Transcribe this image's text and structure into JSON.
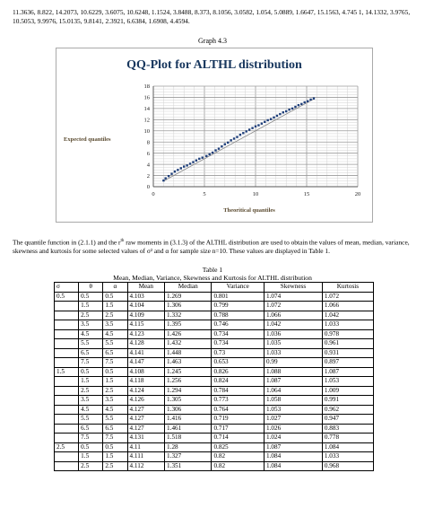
{
  "top_text": "11.3636, 8.822, 14.2073, 10.6229, 3.6075, 10.6248, 1.1524, 3.8488, 8.373, 8.1056, 3.0582, 1.054, 5.0889, 1.6647, 15.1563, 4.745 1, 14.1332, 3.9765, 10.5053, 9.9976, 15.0135, 9.8141, 2.3921, 6.6384, 1.6908, 4.4594.",
  "graph_label": "Graph 4.3",
  "chart_data": {
    "type": "scatter",
    "title": "QQ-Plot for ALTHL distribution",
    "xlabel": "Theoritical quantiles",
    "ylabel": "Expected quantiles",
    "xlim": [
      0,
      20
    ],
    "ylim": [
      0,
      18
    ],
    "x_ticks": [
      "0",
      "5",
      "10",
      "15",
      "20"
    ],
    "y_ticks": [
      "0",
      "2",
      "4",
      "6",
      "8",
      "10",
      "12",
      "14",
      "16",
      "18"
    ],
    "grid": true,
    "colors": {
      "title": "#17365d",
      "axis_label": "#5a4a2f",
      "points": "#1f3f7a",
      "trend": "#888888"
    },
    "points": [
      [
        1.0,
        1.1
      ],
      [
        1.2,
        1.5
      ],
      [
        1.5,
        1.9
      ],
      [
        1.8,
        2.3
      ],
      [
        2.1,
        2.7
      ],
      [
        2.4,
        3.0
      ],
      [
        2.7,
        3.3
      ],
      [
        3.0,
        3.6
      ],
      [
        3.3,
        3.8
      ],
      [
        3.6,
        4.1
      ],
      [
        3.9,
        4.4
      ],
      [
        4.2,
        4.7
      ],
      [
        4.5,
        5.0
      ],
      [
        4.8,
        5.2
      ],
      [
        5.2,
        5.5
      ],
      [
        5.5,
        5.8
      ],
      [
        5.8,
        6.1
      ],
      [
        6.1,
        6.5
      ],
      [
        6.4,
        6.8
      ],
      [
        6.7,
        7.2
      ],
      [
        7.0,
        7.6
      ],
      [
        7.3,
        7.9
      ],
      [
        7.6,
        8.3
      ],
      [
        7.9,
        8.6
      ],
      [
        8.2,
        8.9
      ],
      [
        8.5,
        9.3
      ],
      [
        8.8,
        9.6
      ],
      [
        9.1,
        9.9
      ],
      [
        9.4,
        10.2
      ],
      [
        9.7,
        10.5
      ],
      [
        10.0,
        10.8
      ],
      [
        10.3,
        11.0
      ],
      [
        10.6,
        11.3
      ],
      [
        10.9,
        11.6
      ],
      [
        11.2,
        11.9
      ],
      [
        11.5,
        12.1
      ],
      [
        11.8,
        12.4
      ],
      [
        12.1,
        12.7
      ],
      [
        12.4,
        13.0
      ],
      [
        12.7,
        13.3
      ],
      [
        13.0,
        13.5
      ],
      [
        13.3,
        13.8
      ],
      [
        13.6,
        14.0
      ],
      [
        13.9,
        14.3
      ],
      [
        14.2,
        14.6
      ],
      [
        14.5,
        14.8
      ],
      [
        14.8,
        15.1
      ],
      [
        15.1,
        15.3
      ],
      [
        15.4,
        15.6
      ],
      [
        15.7,
        15.8
      ]
    ],
    "trendline": [
      [
        1.0,
        1.0
      ],
      [
        15.8,
        15.8
      ]
    ]
  },
  "paragraph": "The quantile function in (2.1.1) and the rth raw moments in (3.1.3) of the ALTHL distribution are used to obtain the values of mean, median, variance, skewness and kurtosis for some selected values of σ² and α for sample size n=10. These values are displayed in Table 1.",
  "table_caption_1": "Table 1",
  "table_caption_2": "Mean, Median, Variance, Skewness and Kurtosis for ALTHL distribution",
  "table": {
    "headers": [
      "σ",
      "θ",
      "α",
      "Mean",
      "Median",
      "Variance",
      "Skewness",
      "Kurtosis"
    ],
    "rows": [
      [
        "0.5",
        "0.5",
        "0.5",
        "4.103",
        "1.269",
        "0.801",
        "1.074",
        "1.072"
      ],
      [
        "",
        "1.5",
        "1.5",
        "4.104",
        "1.306",
        "0.799",
        "1.072",
        "1.066"
      ],
      [
        "",
        "2.5",
        "2.5",
        "4.109",
        "1.332",
        "0.788",
        "1.066",
        "1.042"
      ],
      [
        "",
        "3.5",
        "3.5",
        "4.115",
        "1.395",
        "0.746",
        "1.042",
        "1.033"
      ],
      [
        "",
        "4.5",
        "4.5",
        "4.123",
        "1.426",
        "0.734",
        "1.036",
        "0.978"
      ],
      [
        "",
        "5.5",
        "5.5",
        "4.128",
        "1.432",
        "0.734",
        "1.035",
        "0.961"
      ],
      [
        "",
        "6.5",
        "6.5",
        "4.141",
        "1.448",
        "0.73",
        "1.033",
        "0.931"
      ],
      [
        "",
        "7.5",
        "7.5",
        "4.147",
        "1.463",
        "0.653",
        "0.99",
        "0.897"
      ],
      [
        "1.5",
        "0.5",
        "0.5",
        "4.108",
        "1.245",
        "0.826",
        "1.088",
        "1.087"
      ],
      [
        "",
        "1.5",
        "1.5",
        "4.118",
        "1.256",
        "0.824",
        "1.087",
        "1.053"
      ],
      [
        "",
        "2.5",
        "2.5",
        "4.124",
        "1.294",
        "0.784",
        "1.064",
        "1.009"
      ],
      [
        "",
        "3.5",
        "3.5",
        "4.126",
        "1.305",
        "0.773",
        "1.058",
        "0.991"
      ],
      [
        "",
        "4.5",
        "4.5",
        "4.127",
        "1.306",
        "0.764",
        "1.053",
        "0.962"
      ],
      [
        "",
        "5.5",
        "5.5",
        "4.127",
        "1.416",
        "0.719",
        "1.027",
        "0.947"
      ],
      [
        "",
        "6.5",
        "6.5",
        "4.127",
        "1.461",
        "0.717",
        "1.026",
        "0.883"
      ],
      [
        "",
        "7.5",
        "7.5",
        "4.131",
        "1.518",
        "0.714",
        "1.024",
        "0.778"
      ],
      [
        "2.5",
        "0.5",
        "0.5",
        "4.11",
        "1.28",
        "0.825",
        "1.087",
        "1.084"
      ],
      [
        "",
        "1.5",
        "1.5",
        "4.111",
        "1.327",
        "0.82",
        "1.084",
        "1.033"
      ],
      [
        "",
        "2.5",
        "2.5",
        "4.112",
        "1.351",
        "0.82",
        "1.084",
        "0.968"
      ]
    ]
  }
}
